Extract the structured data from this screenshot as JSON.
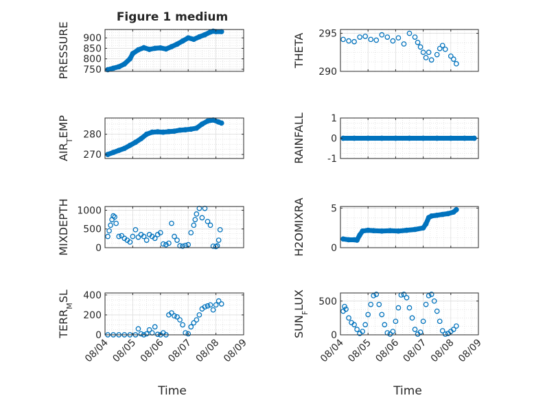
{
  "figure": {
    "title": "Figure 1 medium"
  },
  "xaxis": {
    "label": "Time",
    "ticks": [
      "08/04",
      "08/05",
      "08/06",
      "08/07",
      "08/08",
      "08/09"
    ],
    "tick_values": [
      0,
      1,
      2,
      3,
      4,
      5
    ],
    "xlim": [
      0,
      5
    ]
  },
  "chart_data": [
    {
      "type": "line",
      "ylabel": "PRESSURE",
      "ylim": [
        740,
        940
      ],
      "yticks": [
        750,
        800,
        850,
        900
      ],
      "ytick_labels": [
        "750",
        "800",
        "850",
        "900"
      ],
      "marker": "filled-circle",
      "color": "#0072BD",
      "grid": true,
      "x": [
        0.1,
        0.3,
        0.5,
        0.7,
        0.9,
        1.0,
        1.2,
        1.4,
        1.6,
        1.8,
        2.0,
        2.2,
        2.4,
        2.6,
        2.8,
        3.0,
        3.2,
        3.4,
        3.6,
        3.8,
        3.9,
        4.0,
        4.2
      ],
      "y": [
        748,
        755,
        762,
        775,
        800,
        825,
        843,
        853,
        845,
        850,
        852,
        847,
        858,
        870,
        885,
        900,
        893,
        905,
        915,
        928,
        932,
        930,
        930
      ]
    },
    {
      "type": "line",
      "ylabel": "THETA",
      "ylim": [
        290,
        295.5
      ],
      "yticks": [
        290,
        295
      ],
      "ytick_labels": [
        "290",
        "295"
      ],
      "marker": "open-circle",
      "color": "#0072BD",
      "grid": true,
      "x": [
        0.1,
        0.3,
        0.5,
        0.7,
        0.9,
        1.1,
        1.3,
        1.5,
        1.7,
        1.9,
        2.1,
        2.3,
        2.5,
        2.7,
        2.8,
        2.9,
        3.0,
        3.1,
        3.2,
        3.3,
        3.5,
        3.6,
        3.7,
        3.8,
        4.0,
        4.1,
        4.2
      ],
      "y": [
        294.2,
        294.0,
        293.9,
        294.5,
        294.6,
        294.2,
        294.1,
        294.8,
        294.5,
        294.0,
        294.4,
        293.6,
        295.0,
        294.5,
        293.8,
        293.2,
        292.5,
        291.8,
        292.5,
        291.5,
        292.2,
        293.0,
        293.4,
        292.9,
        292.0,
        291.6,
        291.0
      ]
    },
    {
      "type": "line",
      "ylabel": "AIR_TEMP",
      "ylim": [
        268,
        288
      ],
      "yticks": [
        270,
        280
      ],
      "ytick_labels": [
        "270",
        "280"
      ],
      "marker": "filled-circle",
      "color": "#0072BD",
      "grid": true,
      "x": [
        0.1,
        0.3,
        0.5,
        0.7,
        0.9,
        1.1,
        1.3,
        1.5,
        1.7,
        1.9,
        2.1,
        2.3,
        2.5,
        2.7,
        2.9,
        3.1,
        3.3,
        3.5,
        3.7,
        3.9,
        4.1,
        4.2
      ],
      "y": [
        270,
        271,
        272,
        273,
        274.5,
        276,
        277.8,
        280,
        281,
        281.2,
        281,
        281.3,
        281.5,
        282,
        282.2,
        282.5,
        283,
        285,
        286.5,
        287,
        286,
        285.5
      ]
    },
    {
      "type": "line",
      "ylabel": "RAINFALL",
      "ylim": [
        -1,
        1
      ],
      "yticks": [
        -1,
        0,
        1
      ],
      "ytick_labels": [
        "-1",
        "0",
        "1"
      ],
      "marker": "filled-circle",
      "color": "#0072BD",
      "grid": true,
      "x": [
        0.1,
        0.5,
        1.0,
        1.5,
        2.0,
        2.5,
        3.0,
        3.5,
        4.0,
        4.5,
        4.85
      ],
      "y": [
        0,
        0,
        0,
        0,
        0,
        0,
        0,
        0,
        0,
        0,
        0
      ]
    },
    {
      "type": "scatter",
      "ylabel": "MIXDEPTH",
      "ylim": [
        0,
        1100
      ],
      "yticks": [
        0,
        500,
        1000
      ],
      "ytick_labels": [
        "0",
        "500",
        "1000"
      ],
      "marker": "open-circle",
      "color": "#0072BD",
      "grid": true,
      "x": [
        0.1,
        0.15,
        0.2,
        0.25,
        0.3,
        0.35,
        0.4,
        0.5,
        0.6,
        0.7,
        0.8,
        0.9,
        1.0,
        1.1,
        1.2,
        1.3,
        1.4,
        1.5,
        1.6,
        1.7,
        1.8,
        1.9,
        2.0,
        2.1,
        2.2,
        2.3,
        2.4,
        2.5,
        2.6,
        2.7,
        2.8,
        2.9,
        3.0,
        3.1,
        3.2,
        3.25,
        3.3,
        3.4,
        3.5,
        3.6,
        3.7,
        3.8,
        3.9,
        4.0,
        4.05,
        4.1,
        4.15
      ],
      "y": [
        300,
        450,
        600,
        750,
        850,
        820,
        650,
        300,
        320,
        250,
        200,
        150,
        300,
        480,
        280,
        350,
        300,
        200,
        350,
        300,
        250,
        350,
        400,
        100,
        80,
        120,
        650,
        300,
        200,
        50,
        40,
        60,
        80,
        400,
        600,
        750,
        900,
        1050,
        800,
        1050,
        700,
        600,
        40,
        30,
        50,
        200,
        480
      ]
    },
    {
      "type": "line",
      "ylabel": "H2OMIXRA",
      "ylim": [
        0,
        5.2
      ],
      "yticks": [
        0,
        5
      ],
      "ytick_labels": [
        "0",
        "5"
      ],
      "marker": "filled-circle",
      "color": "#0072BD",
      "grid": true,
      "x": [
        0.1,
        0.3,
        0.5,
        0.6,
        0.7,
        0.8,
        1.0,
        1.2,
        1.5,
        1.8,
        2.1,
        2.4,
        2.7,
        3.0,
        3.1,
        3.2,
        3.3,
        3.5,
        3.7,
        3.9,
        4.1,
        4.2
      ],
      "y": [
        1.1,
        1.0,
        1.0,
        0.95,
        1.6,
        2.1,
        2.2,
        2.15,
        2.1,
        2.15,
        2.1,
        2.2,
        2.3,
        2.5,
        3.0,
        3.8,
        4.0,
        4.1,
        4.2,
        4.3,
        4.5,
        4.8
      ]
    },
    {
      "type": "scatter",
      "ylabel": "TERR_MSL",
      "ylim": [
        0,
        420
      ],
      "yticks": [
        0,
        200,
        400
      ],
      "ytick_labels": [
        "0",
        "200",
        "400"
      ],
      "marker": "open-circle",
      "color": "#0072BD",
      "grid": true,
      "x": [
        0.1,
        0.3,
        0.5,
        0.7,
        0.9,
        1.1,
        1.2,
        1.3,
        1.4,
        1.5,
        1.6,
        1.7,
        1.8,
        1.9,
        2.0,
        2.1,
        2.2,
        2.3,
        2.4,
        2.5,
        2.6,
        2.7,
        2.8,
        2.9,
        3.0,
        3.1,
        3.2,
        3.3,
        3.4,
        3.5,
        3.6,
        3.7,
        3.8,
        3.9,
        4.0,
        4.1,
        4.2
      ],
      "y": [
        0,
        0,
        0,
        0,
        0,
        0,
        60,
        10,
        0,
        10,
        50,
        20,
        80,
        5,
        0,
        20,
        0,
        200,
        220,
        190,
        180,
        150,
        100,
        20,
        10,
        80,
        120,
        150,
        200,
        260,
        280,
        290,
        300,
        250,
        300,
        340,
        310
      ]
    },
    {
      "type": "scatter",
      "ylabel": "SUN_FLUX",
      "ylim": [
        0,
        620
      ],
      "yticks": [
        0,
        500
      ],
      "ytick_labels": [
        "0",
        "500"
      ],
      "marker": "open-circle",
      "color": "#0072BD",
      "grid": true,
      "x": [
        0.1,
        0.15,
        0.2,
        0.3,
        0.4,
        0.5,
        0.6,
        0.7,
        0.8,
        0.9,
        1.0,
        1.1,
        1.2,
        1.3,
        1.4,
        1.5,
        1.6,
        1.7,
        1.8,
        1.9,
        2.0,
        2.1,
        2.2,
        2.3,
        2.4,
        2.5,
        2.6,
        2.7,
        2.8,
        2.9,
        3.0,
        3.1,
        3.2,
        3.3,
        3.4,
        3.5,
        3.6,
        3.7,
        3.8,
        3.9,
        4.0,
        4.1,
        4.2
      ],
      "y": [
        350,
        420,
        380,
        250,
        180,
        150,
        80,
        20,
        50,
        150,
        300,
        450,
        580,
        600,
        450,
        300,
        150,
        30,
        10,
        50,
        200,
        400,
        590,
        600,
        550,
        400,
        250,
        80,
        10,
        40,
        200,
        450,
        580,
        600,
        500,
        350,
        200,
        60,
        10,
        20,
        50,
        80,
        130
      ]
    }
  ]
}
